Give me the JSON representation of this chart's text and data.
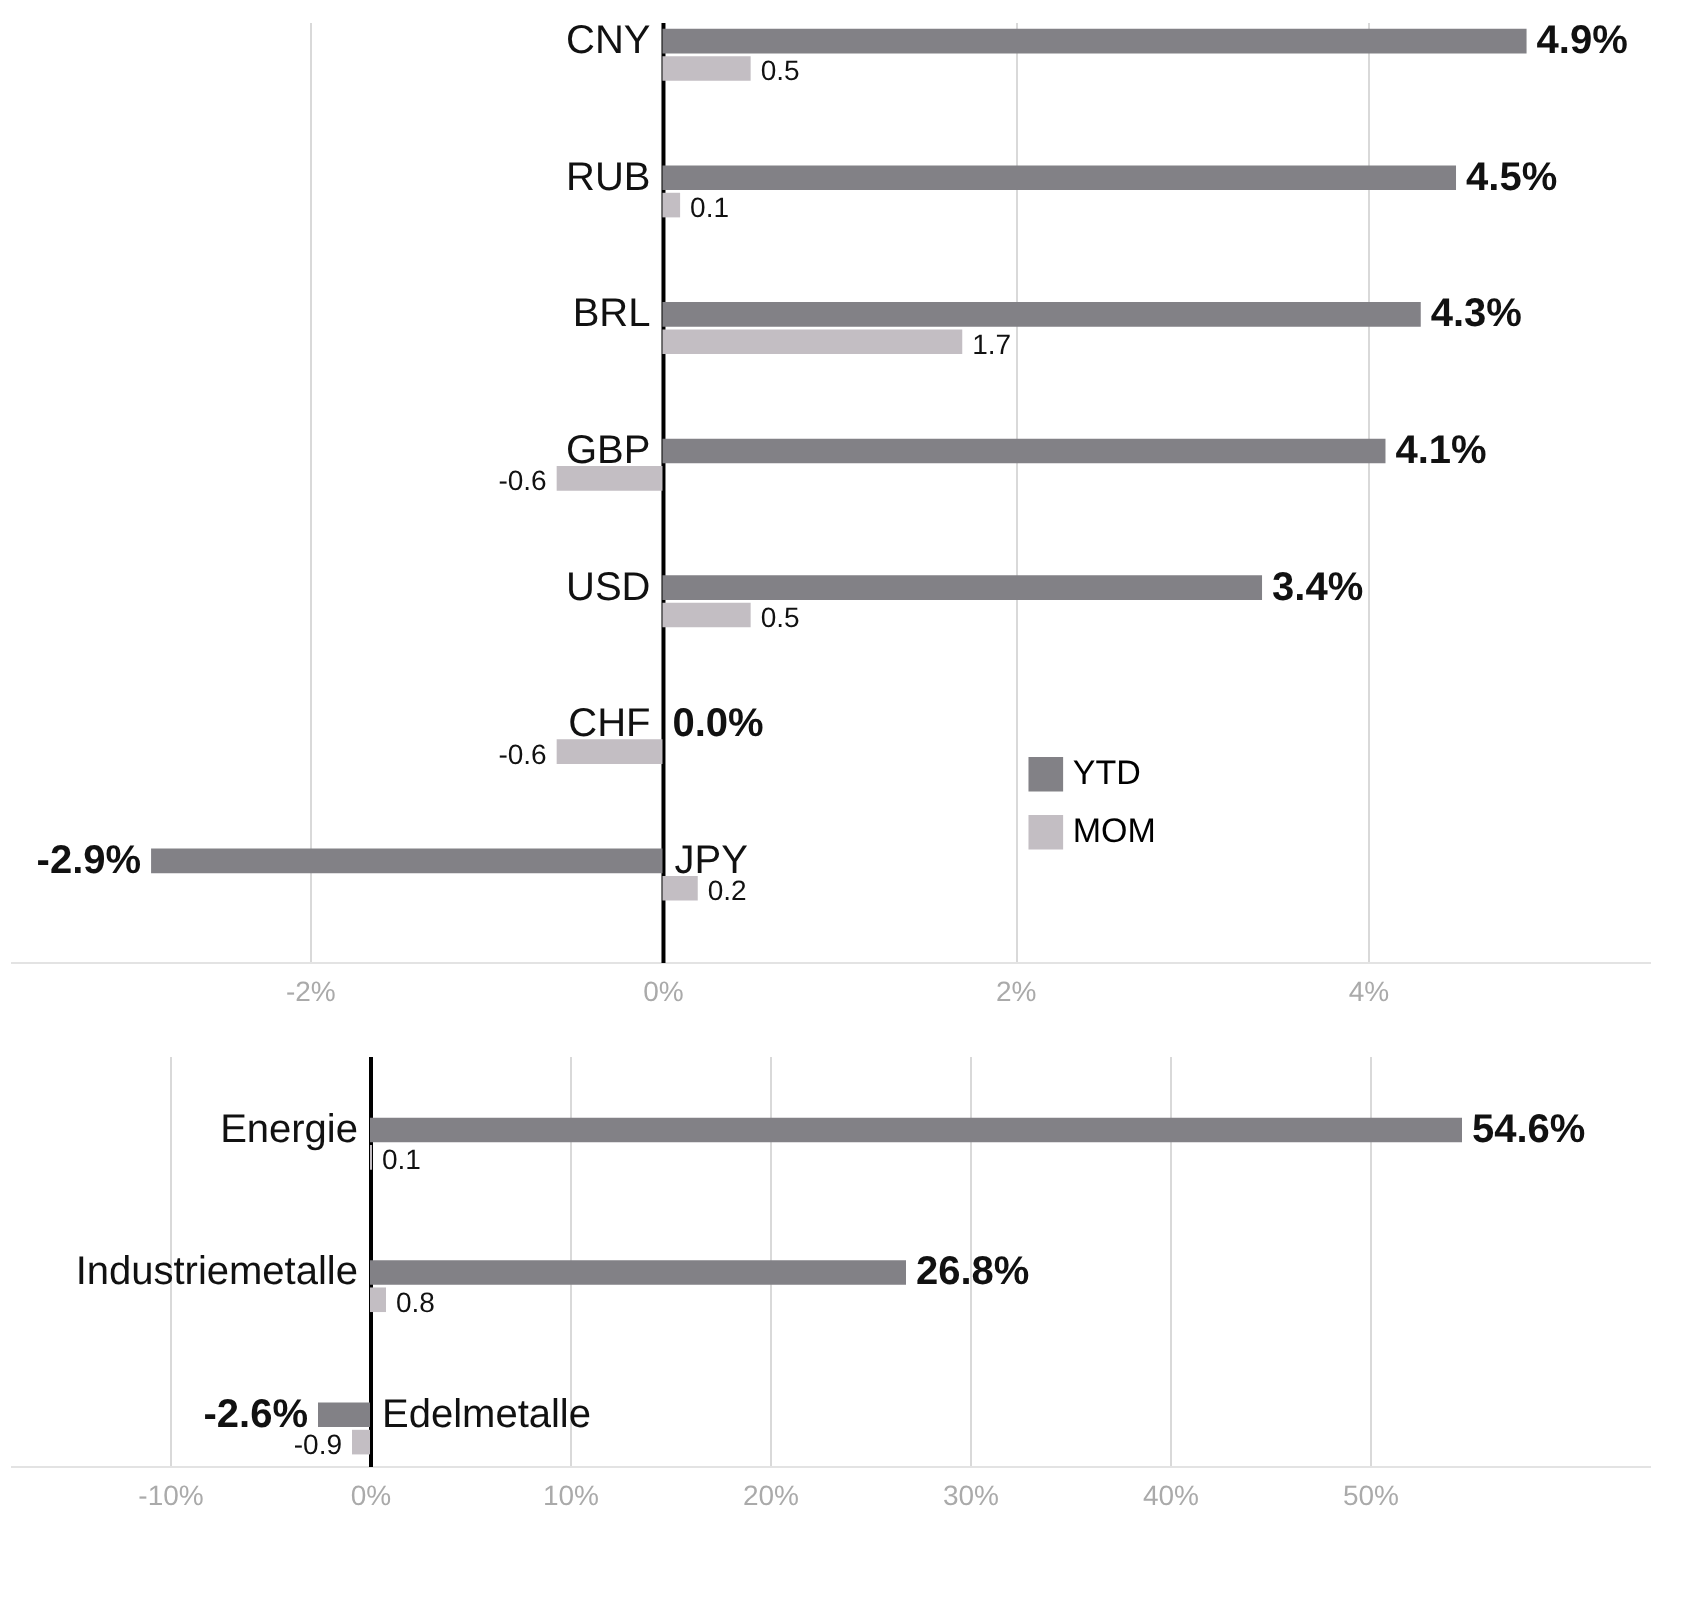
{
  "chart_data": [
    {
      "type": "bar",
      "orientation": "horizontal",
      "categories": [
        "CNY",
        "RUB",
        "BRL",
        "GBP",
        "USD",
        "CHF",
        "JPY"
      ],
      "series": [
        {
          "name": "YTD",
          "color": "#828186",
          "values": [
            4.9,
            4.5,
            4.3,
            4.1,
            3.4,
            0.0,
            -2.9
          ],
          "value_labels": [
            "4.9%",
            "4.5%",
            "4.3%",
            "4.1%",
            "3.4%",
            "0.0%",
            "-2.9%"
          ]
        },
        {
          "name": "MOM",
          "color": "#c3bec3",
          "values": [
            0.5,
            0.1,
            1.7,
            -0.6,
            0.5,
            -0.6,
            0.2
          ],
          "value_labels": [
            "0.5",
            "0.1",
            "1.7",
            "-0.6",
            "0.5",
            "-0.6",
            "0.2"
          ]
        }
      ],
      "xlim": [
        -3.7,
        5.6
      ],
      "xticks": [
        {
          "value": -2,
          "label": "-2%"
        },
        {
          "value": 0,
          "label": "0%"
        },
        {
          "value": 2,
          "label": "2%"
        },
        {
          "value": 4,
          "label": "4%"
        }
      ],
      "grid": "x",
      "legend": "bottom right"
    },
    {
      "type": "bar",
      "orientation": "horizontal",
      "categories": [
        "Energie",
        "Industriemetalle",
        "Edelmetalle"
      ],
      "series": [
        {
          "color": "#828186",
          "values": [
            54.6,
            26.8,
            -2.6
          ],
          "value_labels": [
            "54.6%",
            "26.8%",
            "-2.6%"
          ]
        },
        {
          "color": "#c3bec3",
          "values": [
            0.1,
            0.8,
            -0.9
          ],
          "value_labels": [
            "0.1",
            "0.8",
            "-0.9"
          ]
        }
      ],
      "xlim": [
        -18,
        64
      ],
      "xticks": [
        {
          "value": -10,
          "label": "-10%"
        },
        {
          "value": 0,
          "label": "0%"
        },
        {
          "value": 10,
          "label": "10%"
        },
        {
          "value": 20,
          "label": "20%"
        },
        {
          "value": 30,
          "label": "30%"
        },
        {
          "value": 40,
          "label": "40%"
        },
        {
          "value": 50,
          "label": "50%"
        }
      ],
      "grid": "x",
      "legend": false
    }
  ]
}
